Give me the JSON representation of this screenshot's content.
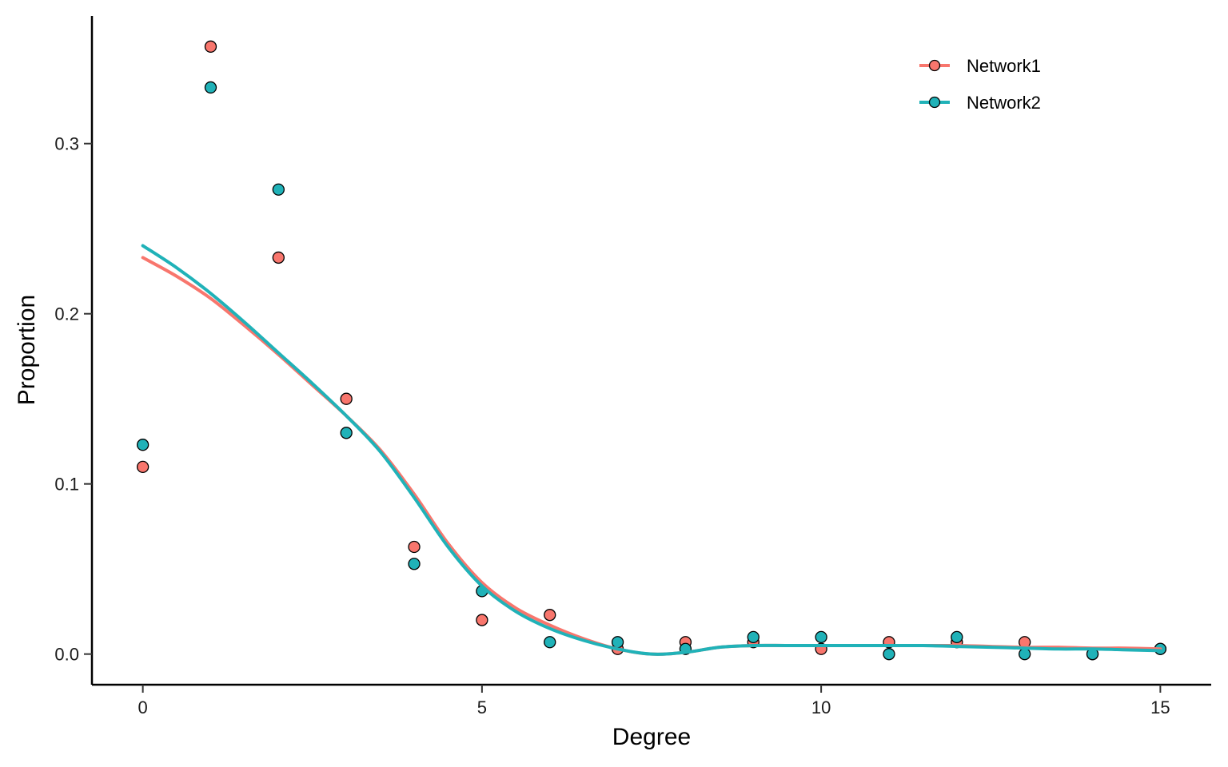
{
  "chart_data": {
    "type": "scatter",
    "title": "",
    "xlabel": "Degree",
    "ylabel": "Proportion",
    "xlim": [
      -0.75,
      15.75
    ],
    "ylim": [
      -0.018,
      0.375
    ],
    "x_ticks": [
      0,
      5,
      10,
      15
    ],
    "x_tick_labels": [
      "0",
      "5",
      "10",
      "15"
    ],
    "y_ticks": [
      0.0,
      0.1,
      0.2,
      0.3
    ],
    "y_tick_labels": [
      "0.0",
      "0.1",
      "0.2",
      "0.3"
    ],
    "grid": false,
    "legend_position": "top-right",
    "series": [
      {
        "name": "Network1",
        "color": "#F8766D",
        "points": {
          "x": [
            0,
            1,
            2,
            3,
            4,
            5,
            6,
            7,
            8,
            9,
            10,
            11,
            12,
            13,
            14,
            15
          ],
          "y": [
            0.11,
            0.357,
            0.233,
            0.15,
            0.063,
            0.02,
            0.023,
            0.003,
            0.007,
            0.007,
            0.003,
            0.007,
            0.007,
            0.007,
            0.0,
            0.003
          ]
        },
        "smooth": {
          "x": [
            0,
            0.5,
            1,
            1.5,
            2,
            2.5,
            3,
            3.5,
            4,
            4.5,
            5,
            5.5,
            6,
            6.5,
            7,
            7.5,
            8,
            8.5,
            9,
            9.5,
            10,
            10.5,
            11,
            11.5,
            12,
            12.5,
            13,
            13.5,
            14,
            14.5,
            15
          ],
          "y": [
            0.233,
            0.222,
            0.209,
            0.193,
            0.176,
            0.158,
            0.14,
            0.12,
            0.094,
            0.065,
            0.042,
            0.027,
            0.017,
            0.009,
            0.003,
            0.0,
            0.001,
            0.004,
            0.005,
            0.005,
            0.005,
            0.005,
            0.005,
            0.005,
            0.005,
            0.0045,
            0.004,
            0.004,
            0.0035,
            0.0035,
            0.003
          ]
        }
      },
      {
        "name": "Network2",
        "color": "#20B2B8",
        "points": {
          "x": [
            0,
            1,
            2,
            3,
            4,
            5,
            6,
            7,
            8,
            9,
            10,
            11,
            12,
            13,
            14,
            15
          ],
          "y": [
            0.123,
            0.333,
            0.273,
            0.13,
            0.053,
            0.037,
            0.007,
            0.007,
            0.003,
            0.01,
            0.01,
            0.0,
            0.01,
            0.0,
            0.0,
            0.003
          ]
        },
        "smooth": {
          "x": [
            0,
            0.5,
            1,
            1.5,
            2,
            2.5,
            3,
            3.5,
            4,
            4.5,
            5,
            5.5,
            6,
            6.5,
            7,
            7.5,
            8,
            8.5,
            9,
            9.5,
            10,
            10.5,
            11,
            11.5,
            12,
            12.5,
            13,
            13.5,
            14,
            14.5,
            15
          ],
          "y": [
            0.24,
            0.227,
            0.212,
            0.195,
            0.177,
            0.159,
            0.14,
            0.119,
            0.092,
            0.063,
            0.04,
            0.025,
            0.015,
            0.008,
            0.003,
            0.0,
            0.001,
            0.004,
            0.005,
            0.005,
            0.005,
            0.005,
            0.005,
            0.005,
            0.0045,
            0.004,
            0.0035,
            0.003,
            0.003,
            0.0025,
            0.002
          ]
        }
      }
    ]
  }
}
